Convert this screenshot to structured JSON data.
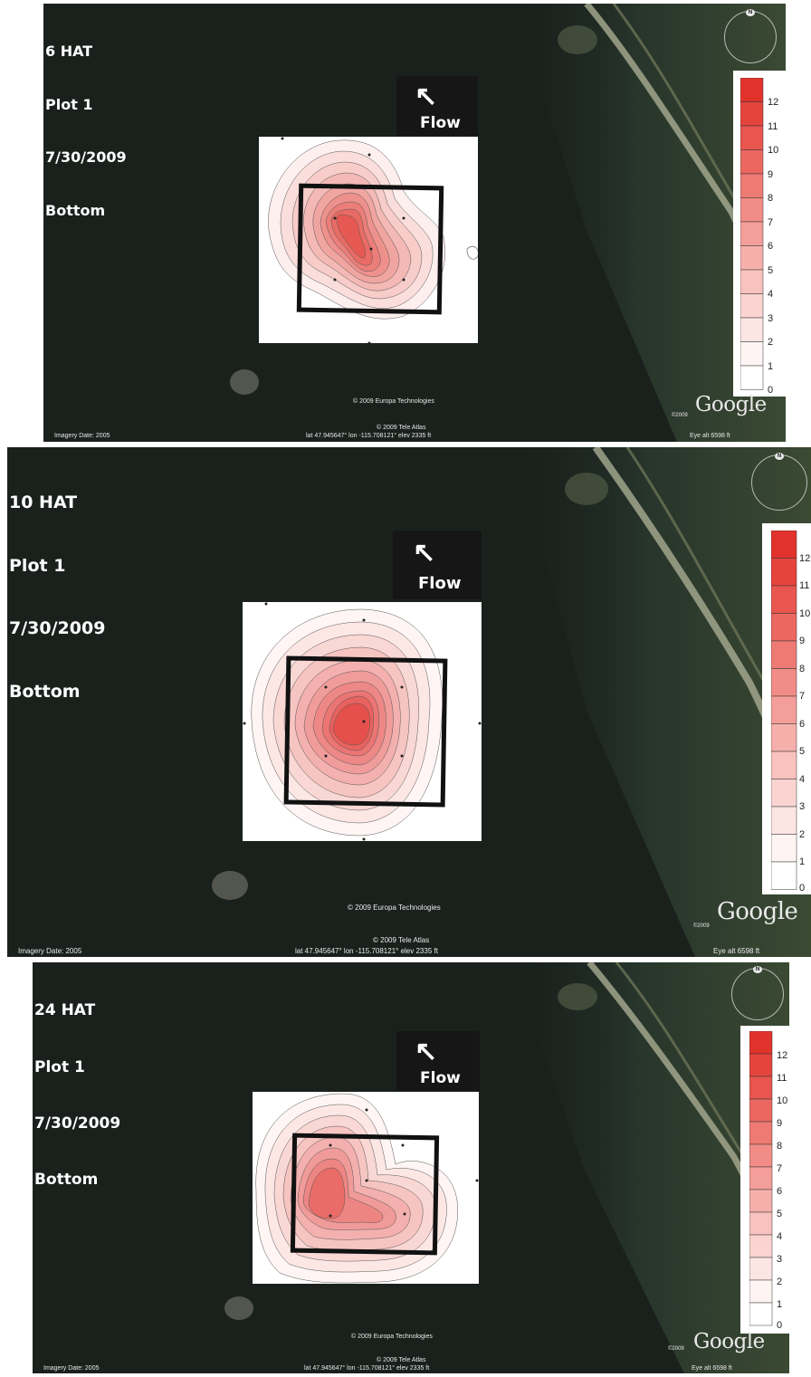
{
  "panels": [
    {
      "title_lines": [
        "6 HAT",
        "Plot 1",
        "7/30/2009",
        "Bottom"
      ],
      "flow_label": "Flow",
      "flow_arrow": "↖",
      "legend_ticks": [
        "12",
        "11",
        "10",
        "9",
        "8",
        "7",
        "6",
        "5",
        "4",
        "3",
        "2",
        "1",
        "0"
      ],
      "credits": {
        "europa": "© 2009 Europa Technologies",
        "tele_atlas": "© 2009 Tele Atlas",
        "coords": "lat  47.945647°   lon -115.708121°   elev  2335 ft",
        "imagery_date": "Imagery Date: 2005",
        "eye_alt": "Eye alt    6598 ft",
        "google": "Google",
        "copyright_year": "©2009"
      }
    },
    {
      "title_lines": [
        "10 HAT",
        "Plot 1",
        "7/30/2009",
        "Bottom"
      ],
      "flow_label": "Flow",
      "flow_arrow": "↖",
      "legend_ticks": [
        "12",
        "11",
        "10",
        "9",
        "8",
        "7",
        "6",
        "5",
        "4",
        "3",
        "2",
        "1",
        "0"
      ],
      "credits": {
        "europa": "© 2009 Europa Technologies",
        "tele_atlas": "© 2009 Tele Atlas",
        "coords": "lat  47.945647°   lon -115.708121°   elev  2335 ft",
        "imagery_date": "Imagery Date: 2005",
        "eye_alt": "Eye alt    6598 ft",
        "google": "Google",
        "copyright_year": "©2009"
      }
    },
    {
      "title_lines": [
        "24 HAT",
        "Plot 1",
        "7/30/2009",
        "Bottom"
      ],
      "flow_label": "Flow",
      "flow_arrow": "↖",
      "legend_ticks": [
        "12",
        "11",
        "10",
        "9",
        "8",
        "7",
        "6",
        "5",
        "4",
        "3",
        "2",
        "1",
        "0"
      ],
      "credits": {
        "europa": "© 2009 Europa Technologies",
        "tele_atlas": "© 2009 Tele Atlas",
        "coords": "lat  47.945647°   lon -115.708121°   elev  2335 ft",
        "imagery_date": "Imagery Date: 2005",
        "eye_alt": "Eye alt    6598 ft",
        "google": "Google",
        "copyright_year": "©2009"
      }
    }
  ],
  "colors": {
    "water": "#1a211d",
    "contour_max": "#e2322c",
    "contour_min": "#ffffff",
    "plot_outline": "#111111",
    "label_text": "#ffffff"
  }
}
